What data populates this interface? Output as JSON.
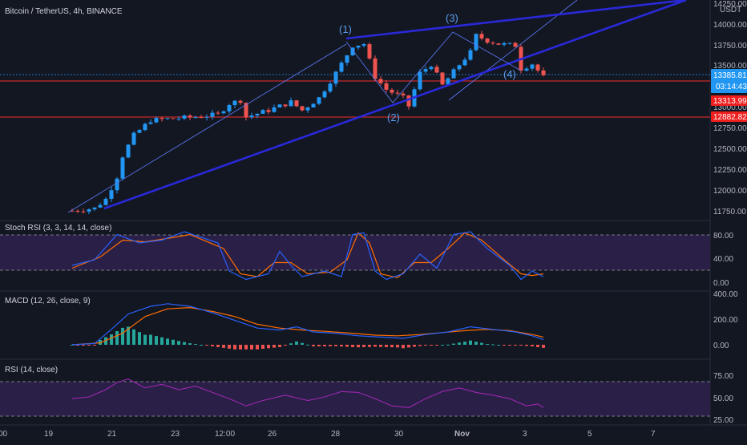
{
  "colors": {
    "background": "#131722",
    "bull": "#26a69a",
    "bullCandle": "#2196f3",
    "bear": "#ef5350",
    "wedge": "#2929d9",
    "hline": "#d32f2f",
    "stochK": "#2962ff",
    "stochD": "#ff6d00",
    "band": "#2a1f47",
    "macd": "#2962ff",
    "signal": "#ff6d00",
    "rsi": "#9c27b0",
    "priceBadge": "#2196f3",
    "redBadge": "#ef1f1f"
  },
  "header": {
    "title": "Bitcoin / TetherUS, 4h, BINANCE",
    "currency": "USDT"
  },
  "price_axis": {
    "ticks": [
      "14250.00",
      "14000.00",
      "13750.00",
      "13500.00",
      "13000.00",
      "12750.00",
      "12500.00",
      "12250.00",
      "12000.00",
      "11750.00"
    ],
    "current_price": "13385.81",
    "countdown": "03:14:43",
    "level1": "13313.99",
    "level2": "12882.82"
  },
  "wave_labels": [
    "(1)",
    "(2)",
    "(3)",
    "(4)"
  ],
  "indicators": {
    "stoch": {
      "title": "Stoch RSI (3, 3, 14, 14, close)",
      "ticks": [
        "80.00",
        "40.00",
        "0.00"
      ]
    },
    "macd": {
      "title": "MACD (12, 26, close, 9)",
      "ticks": [
        "400.00",
        "200.00",
        "0.00"
      ]
    },
    "rsi": {
      "title": "RSI (14, close)",
      "ticks": [
        "75.00",
        "50.00",
        "25.00"
      ]
    }
  },
  "time_axis": [
    "00",
    "19",
    "21",
    "23",
    "12:00",
    "26",
    "28",
    "30",
    "Nov",
    "3",
    "5",
    "7"
  ],
  "chart_data": {
    "type": "candlestick",
    "symbol": "Bitcoin / TetherUS",
    "interval": "4h",
    "exchange": "BINANCE",
    "price_range": [
      11700,
      14300
    ],
    "close_path": [
      [
        0,
        11790
      ],
      [
        8,
        11820
      ],
      [
        12,
        11930
      ],
      [
        16,
        12200
      ],
      [
        18,
        12450
      ],
      [
        22,
        12700
      ],
      [
        28,
        12880
      ],
      [
        36,
        12900
      ],
      [
        44,
        12920
      ],
      [
        52,
        12950
      ],
      [
        56,
        13080
      ],
      [
        60,
        13120
      ],
      [
        62,
        12920
      ],
      [
        70,
        13000
      ],
      [
        78,
        13100
      ],
      [
        82,
        13000
      ],
      [
        88,
        13150
      ],
      [
        94,
        13450
      ],
      [
        100,
        13780
      ],
      [
        104,
        13800
      ],
      [
        108,
        13400
      ],
      [
        112,
        13250
      ],
      [
        118,
        13150
      ],
      [
        120,
        13050
      ],
      [
        124,
        13450
      ],
      [
        128,
        13550
      ],
      [
        132,
        13300
      ],
      [
        138,
        13550
      ],
      [
        142,
        13700
      ],
      [
        144,
        13900
      ],
      [
        148,
        13840
      ],
      [
        152,
        13800
      ],
      [
        158,
        13780
      ],
      [
        160,
        13500
      ],
      [
        164,
        13560
      ],
      [
        168,
        13400
      ]
    ],
    "horizontal_levels": [
      13313.99,
      12882.82
    ],
    "current_price": 13385.81,
    "stoch_rsi": {
      "band": [
        20,
        80
      ],
      "k_path": [
        [
          0,
          30
        ],
        [
          8,
          40
        ],
        [
          16,
          85
        ],
        [
          24,
          70
        ],
        [
          32,
          75
        ],
        [
          40,
          90
        ],
        [
          52,
          70
        ],
        [
          56,
          20
        ],
        [
          62,
          5
        ],
        [
          70,
          15
        ],
        [
          74,
          55
        ],
        [
          78,
          30
        ],
        [
          82,
          10
        ],
        [
          90,
          20
        ],
        [
          96,
          10
        ],
        [
          100,
          85
        ],
        [
          104,
          88
        ],
        [
          108,
          20
        ],
        [
          112,
          5
        ],
        [
          118,
          15
        ],
        [
          124,
          50
        ],
        [
          130,
          25
        ],
        [
          136,
          85
        ],
        [
          142,
          90
        ],
        [
          148,
          60
        ],
        [
          156,
          30
        ],
        [
          160,
          5
        ],
        [
          164,
          20
        ],
        [
          168,
          10
        ]
      ],
      "d_path": [
        [
          0,
          25
        ],
        [
          10,
          45
        ],
        [
          18,
          75
        ],
        [
          26,
          72
        ],
        [
          34,
          78
        ],
        [
          42,
          85
        ],
        [
          54,
          60
        ],
        [
          60,
          15
        ],
        [
          66,
          10
        ],
        [
          72,
          35
        ],
        [
          78,
          35
        ],
        [
          84,
          15
        ],
        [
          92,
          18
        ],
        [
          98,
          40
        ],
        [
          102,
          88
        ],
        [
          106,
          70
        ],
        [
          110,
          15
        ],
        [
          116,
          8
        ],
        [
          122,
          35
        ],
        [
          128,
          35
        ],
        [
          134,
          60
        ],
        [
          140,
          88
        ],
        [
          146,
          75
        ],
        [
          154,
          40
        ],
        [
          160,
          15
        ],
        [
          164,
          12
        ],
        [
          168,
          15
        ]
      ]
    },
    "macd": {
      "range": [
        -50,
        420
      ],
      "macd_path": [
        [
          0,
          0
        ],
        [
          8,
          10
        ],
        [
          14,
          120
        ],
        [
          20,
          240
        ],
        [
          28,
          300
        ],
        [
          34,
          320
        ],
        [
          42,
          300
        ],
        [
          50,
          250
        ],
        [
          58,
          190
        ],
        [
          66,
          130
        ],
        [
          74,
          115
        ],
        [
          80,
          140
        ],
        [
          86,
          100
        ],
        [
          94,
          90
        ],
        [
          102,
          70
        ],
        [
          110,
          60
        ],
        [
          118,
          50
        ],
        [
          126,
          80
        ],
        [
          134,
          100
        ],
        [
          142,
          140
        ],
        [
          150,
          120
        ],
        [
          158,
          100
        ],
        [
          164,
          70
        ],
        [
          168,
          40
        ]
      ],
      "signal_path": [
        [
          0,
          0
        ],
        [
          10,
          15
        ],
        [
          18,
          90
        ],
        [
          26,
          220
        ],
        [
          34,
          280
        ],
        [
          42,
          290
        ],
        [
          50,
          260
        ],
        [
          58,
          220
        ],
        [
          66,
          160
        ],
        [
          74,
          130
        ],
        [
          82,
          115
        ],
        [
          90,
          105
        ],
        [
          100,
          90
        ],
        [
          108,
          75
        ],
        [
          116,
          70
        ],
        [
          124,
          80
        ],
        [
          132,
          95
        ],
        [
          140,
          110
        ],
        [
          148,
          120
        ],
        [
          156,
          110
        ],
        [
          164,
          80
        ],
        [
          168,
          60
        ]
      ]
    },
    "rsi": {
      "band": [
        30,
        70
      ],
      "path": [
        [
          0,
          48
        ],
        [
          6,
          50
        ],
        [
          12,
          58
        ],
        [
          16,
          66
        ],
        [
          20,
          70
        ],
        [
          26,
          60
        ],
        [
          32,
          64
        ],
        [
          38,
          58
        ],
        [
          44,
          62
        ],
        [
          50,
          55
        ],
        [
          56,
          48
        ],
        [
          62,
          40
        ],
        [
          68,
          46
        ],
        [
          76,
          52
        ],
        [
          84,
          46
        ],
        [
          90,
          50
        ],
        [
          96,
          56
        ],
        [
          102,
          55
        ],
        [
          108,
          48
        ],
        [
          114,
          40
        ],
        [
          120,
          38
        ],
        [
          126,
          48
        ],
        [
          132,
          56
        ],
        [
          138,
          60
        ],
        [
          144,
          55
        ],
        [
          150,
          52
        ],
        [
          156,
          48
        ],
        [
          162,
          40
        ],
        [
          166,
          42
        ],
        [
          168,
          38
        ]
      ]
    }
  }
}
